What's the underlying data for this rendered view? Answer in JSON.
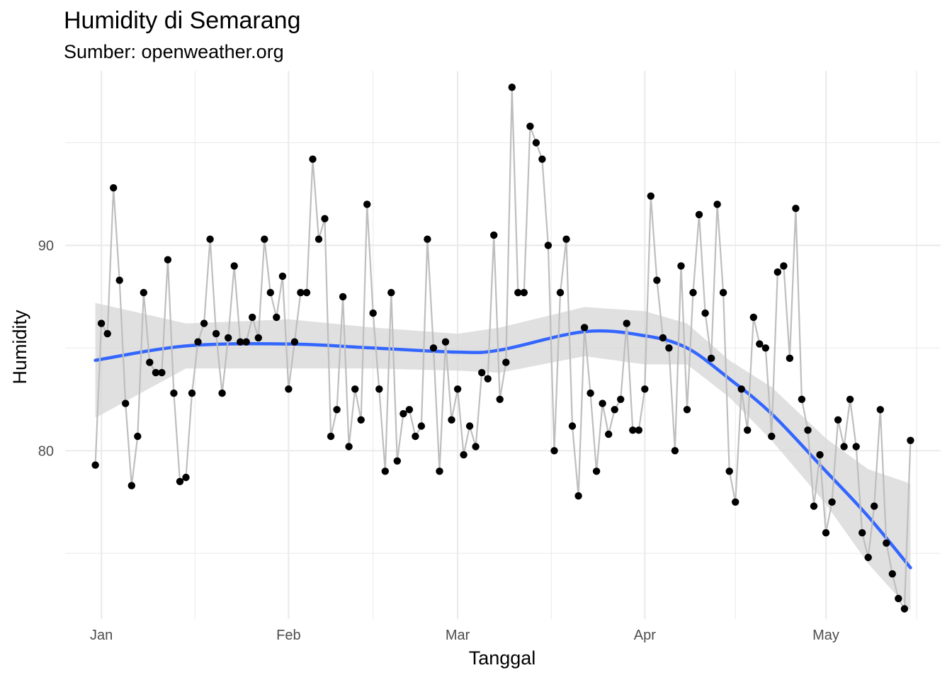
{
  "chart_data": {
    "type": "line",
    "title": "Humidity di Semarang",
    "subtitle": "Sumber: openweather.org",
    "xlabel": "Tanggal",
    "ylabel": "Humidity",
    "x_ticks": [
      "Jan",
      "Feb",
      "Mar",
      "Apr",
      "May"
    ],
    "x_tick_dates": [
      "2021-01-01",
      "2021-02-01",
      "2021-03-01",
      "2021-04-01",
      "2021-05-01"
    ],
    "y_ticks": [
      80,
      90
    ],
    "xlim": [
      "2020-12-26",
      "2021-05-20"
    ],
    "ylim": [
      71.8,
      98.5
    ],
    "grid": true,
    "legend": "none",
    "series": [
      {
        "type": "line+points",
        "color_line": "#bebebe",
        "color_points": "#000000",
        "x": [
          "2020-12-31",
          "2021-01-01",
          "2021-01-02",
          "2021-01-03",
          "2021-01-04",
          "2021-01-05",
          "2021-01-06",
          "2021-01-07",
          "2021-01-08",
          "2021-01-09",
          "2021-01-10",
          "2021-01-11",
          "2021-01-12",
          "2021-01-13",
          "2021-01-14",
          "2021-01-15",
          "2021-01-16",
          "2021-01-17",
          "2021-01-18",
          "2021-01-19",
          "2021-01-20",
          "2021-01-21",
          "2021-01-22",
          "2021-01-23",
          "2021-01-24",
          "2021-01-25",
          "2021-01-26",
          "2021-01-27",
          "2021-01-28",
          "2021-01-29",
          "2021-01-30",
          "2021-01-31",
          "2021-02-01",
          "2021-02-02",
          "2021-02-03",
          "2021-02-04",
          "2021-02-05",
          "2021-02-06",
          "2021-02-07",
          "2021-02-08",
          "2021-02-09",
          "2021-02-10",
          "2021-02-11",
          "2021-02-12",
          "2021-02-13",
          "2021-02-14",
          "2021-02-15",
          "2021-02-16",
          "2021-02-17",
          "2021-02-18",
          "2021-02-19",
          "2021-02-20",
          "2021-02-21",
          "2021-02-22",
          "2021-02-23",
          "2021-02-24",
          "2021-02-25",
          "2021-02-26",
          "2021-02-27",
          "2021-02-28",
          "2021-03-01",
          "2021-03-02",
          "2021-03-03",
          "2021-03-04",
          "2021-03-05",
          "2021-03-06",
          "2021-03-07",
          "2021-03-08",
          "2021-03-09",
          "2021-03-10",
          "2021-03-11",
          "2021-03-12",
          "2021-03-13",
          "2021-03-14",
          "2021-03-15",
          "2021-03-16",
          "2021-03-17",
          "2021-03-18",
          "2021-03-19",
          "2021-03-20",
          "2021-03-21",
          "2021-03-22",
          "2021-03-23",
          "2021-03-24",
          "2021-03-25",
          "2021-03-26",
          "2021-03-27",
          "2021-03-28",
          "2021-03-29",
          "2021-03-30",
          "2021-03-31",
          "2021-04-01",
          "2021-04-02",
          "2021-04-03",
          "2021-04-04",
          "2021-04-05",
          "2021-04-06",
          "2021-04-07",
          "2021-04-08",
          "2021-04-09",
          "2021-04-10",
          "2021-04-11",
          "2021-04-12",
          "2021-04-13",
          "2021-04-14",
          "2021-04-15",
          "2021-04-16",
          "2021-04-17",
          "2021-04-18",
          "2021-04-19",
          "2021-04-20",
          "2021-04-21",
          "2021-04-22",
          "2021-04-23",
          "2021-04-24",
          "2021-04-25",
          "2021-04-26",
          "2021-04-27",
          "2021-04-28",
          "2021-04-29",
          "2021-04-30",
          "2021-05-01",
          "2021-05-02",
          "2021-05-03",
          "2021-05-04",
          "2021-05-05",
          "2021-05-06",
          "2021-05-07",
          "2021-05-08",
          "2021-05-09",
          "2021-05-10",
          "2021-05-11",
          "2021-05-12",
          "2021-05-13",
          "2021-05-14",
          "2021-05-15"
        ],
        "y": [
          79.3,
          86.2,
          85.7,
          92.8,
          88.3,
          82.3,
          78.3,
          80.7,
          87.7,
          84.3,
          83.8,
          83.8,
          89.3,
          82.8,
          78.5,
          78.7,
          82.8,
          85.3,
          86.2,
          90.3,
          85.7,
          82.8,
          85.5,
          89.0,
          85.3,
          85.3,
          86.5,
          85.5,
          90.3,
          87.7,
          86.5,
          88.5,
          83.0,
          85.3,
          87.7,
          87.7,
          94.2,
          90.3,
          91.3,
          80.7,
          82.0,
          87.5,
          80.2,
          83.0,
          81.5,
          92.0,
          86.7,
          83.0,
          79.0,
          87.7,
          79.5,
          81.8,
          82.0,
          80.7,
          81.2,
          90.3,
          85.0,
          79.0,
          85.3,
          81.5,
          83.0,
          79.8,
          81.2,
          80.2,
          83.8,
          83.5,
          90.5,
          82.5,
          84.3,
          97.7,
          87.7,
          87.7,
          95.8,
          95.0,
          94.2,
          90.0,
          80.0,
          87.7,
          90.3,
          81.2,
          77.8,
          86.0,
          82.8,
          79.0,
          82.3,
          80.8,
          82.0,
          82.5,
          86.2,
          81.0,
          81.0,
          83.0,
          92.4,
          88.3,
          85.5,
          85.0,
          80.0,
          89.0,
          82.0,
          87.7,
          91.5,
          86.7,
          84.5,
          92.0,
          87.7,
          79.0,
          77.5,
          83.0,
          81.0,
          86.5,
          85.2,
          85.0,
          80.7,
          88.7,
          89.0,
          84.5,
          91.8,
          82.5,
          81.0,
          77.3,
          79.8,
          76.0,
          77.5,
          81.5,
          80.2,
          82.5,
          80.2,
          76.0,
          74.8,
          77.3,
          82.0,
          75.5,
          74.0,
          72.8,
          72.3,
          80.5
        ]
      },
      {
        "type": "smooth",
        "name": "loess",
        "color": "#3366ff",
        "ribbon_color": "#d6d6d6",
        "x": [
          "2020-12-31",
          "2021-01-15",
          "2021-02-01",
          "2021-02-15",
          "2021-03-01",
          "2021-03-08",
          "2021-03-22",
          "2021-04-01",
          "2021-04-08",
          "2021-04-15",
          "2021-04-22",
          "2021-05-01",
          "2021-05-08",
          "2021-05-15"
        ],
        "y": [
          84.4,
          85.1,
          85.2,
          85.0,
          84.8,
          84.9,
          85.8,
          85.6,
          85.0,
          83.5,
          81.8,
          79.0,
          76.8,
          74.3
        ],
        "lower": [
          81.6,
          84.0,
          84.0,
          84.0,
          83.9,
          83.8,
          84.6,
          84.2,
          84.2,
          82.6,
          80.5,
          77.4,
          74.5,
          72.2
        ],
        "upper": [
          87.2,
          86.2,
          86.4,
          86.0,
          85.7,
          86.0,
          87.0,
          86.8,
          86.2,
          84.4,
          83.1,
          80.6,
          79.1,
          78.4
        ]
      }
    ]
  }
}
